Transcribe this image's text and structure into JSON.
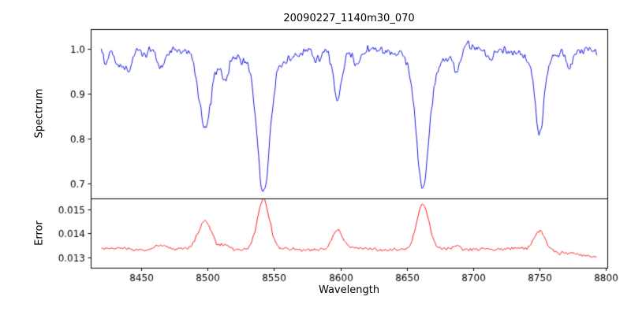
{
  "chart_data": {
    "type": "line",
    "title": "20090227_1140m30_070",
    "xlabel": "Wavelength",
    "xlim": [
      8412,
      8801
    ],
    "x_start": 8420,
    "x_end": 8793,
    "x_step": 0.5,
    "x_ticks": [
      8450,
      8500,
      8550,
      8600,
      8650,
      8700,
      8750,
      8800
    ],
    "x_tick_labels": [
      "8450",
      "8500",
      "8550",
      "8600",
      "8650",
      "8700",
      "8750",
      "8800"
    ],
    "seed": 20090227,
    "panels": [
      {
        "name": "spectrum",
        "ylabel": "Spectrum",
        "color": "#0000dd",
        "ylim": [
          0.667,
          1.044
        ],
        "yticks": [
          0.7,
          0.8,
          0.9,
          1.0
        ],
        "ytick_labels": [
          "0.7",
          "0.8",
          "0.9",
          "1.0"
        ],
        "model": {
          "continuum": 1.0,
          "noise_std": 0.0075,
          "wiggles": [
            {
              "amp": 0.005,
              "period": 55,
              "phase": 1.0
            },
            {
              "amp": 0.004,
              "period": 23,
              "phase": 2.5
            }
          ],
          "lines": [
            {
              "c": 8423,
              "d": 0.04,
              "s": 2.0
            },
            {
              "c": 8433,
              "d": 0.045,
              "s": 2.5
            },
            {
              "c": 8440,
              "d": 0.055,
              "s": 2.5
            },
            {
              "c": 8465,
              "d": 0.045,
              "s": 3.0
            },
            {
              "c": 8498,
              "d": 0.135,
              "s": 4.0
            },
            {
              "c": 8498,
              "d": 0.04,
              "s": 10.0
            },
            {
              "c": 8513,
              "d": 0.055,
              "s": 2.5
            },
            {
              "c": 8542,
              "d": 0.26,
              "s": 4.5
            },
            {
              "c": 8542,
              "d": 0.06,
              "s": 12.0
            },
            {
              "c": 8582,
              "d": 0.03,
              "s": 2.5
            },
            {
              "c": 8598,
              "d": 0.115,
              "s": 3.5
            },
            {
              "c": 8612,
              "d": 0.025,
              "s": 2.5
            },
            {
              "c": 8662,
              "d": 0.25,
              "s": 4.5
            },
            {
              "c": 8662,
              "d": 0.055,
              "s": 12.0
            },
            {
              "c": 8688,
              "d": 0.045,
              "s": 2.5
            },
            {
              "c": 8713,
              "d": 0.03,
              "s": 2.5
            },
            {
              "c": 8750,
              "d": 0.14,
              "s": 3.0
            },
            {
              "c": 8750,
              "d": 0.05,
              "s": 8.0
            },
            {
              "c": 8772,
              "d": 0.035,
              "s": 2.5
            }
          ]
        }
      },
      {
        "name": "error",
        "ylabel": "Error",
        "color": "#ff0000",
        "ylim": [
          0.01257,
          0.01546
        ],
        "yticks": [
          0.013,
          0.014,
          0.015
        ],
        "ytick_labels": [
          "0.013",
          "0.014",
          "0.015"
        ],
        "model": {
          "baseline": 0.01335,
          "noise_std": 5e-05,
          "wiggles": [
            {
              "amp": 3e-05,
              "period": 60,
              "phase": 0.7
            }
          ],
          "bumps": [
            {
              "c": 8465,
              "h": 0.0002,
              "s": 4.0
            },
            {
              "c": 8498,
              "h": 0.00115,
              "s": 5.0
            },
            {
              "c": 8513,
              "h": 0.0002,
              "s": 3.0
            },
            {
              "c": 8542,
              "h": 0.00205,
              "s": 4.5
            },
            {
              "c": 8598,
              "h": 0.00075,
              "s": 4.0
            },
            {
              "c": 8662,
              "h": 0.00185,
              "s": 4.5
            },
            {
              "c": 8688,
              "h": 0.00015,
              "s": 3.0
            },
            {
              "c": 8750,
              "h": 0.00078,
              "s": 4.0
            }
          ],
          "edge_drop": {
            "start": 8752,
            "end": 8793,
            "amount": 0.00038
          }
        }
      }
    ]
  }
}
